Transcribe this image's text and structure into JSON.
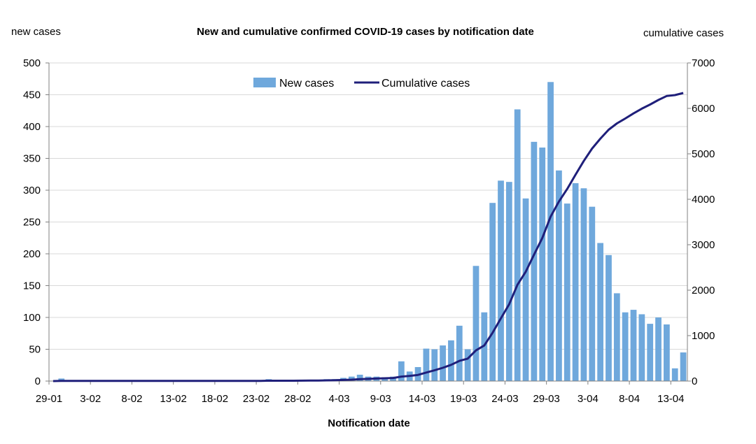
{
  "chart_data": {
    "type": "bar",
    "title": "New and cumulative confirmed COVID-19 cases by notification date",
    "ylabel_left": "new cases",
    "ylabel_right": "cumulative cases",
    "xlabel": "Notification date",
    "ylim_left": [
      0,
      500
    ],
    "ylim_right": [
      0,
      7000
    ],
    "yticks_left": [
      "0",
      "50",
      "100",
      "150",
      "200",
      "250",
      "300",
      "350",
      "400",
      "450",
      "500"
    ],
    "yticks_right": [
      "0",
      "1000",
      "2000",
      "3000",
      "4000",
      "5000",
      "6000",
      "7000"
    ],
    "grid": true,
    "legend_position": "top-center",
    "xtick_labels": [
      "29-01",
      "3-02",
      "8-02",
      "13-02",
      "18-02",
      "23-02",
      "28-02",
      "4-03",
      "9-03",
      "14-03",
      "19-03",
      "24-03",
      "29-03",
      "3-04",
      "8-04",
      "13-04"
    ],
    "categories": [
      "29-01",
      "30-01",
      "31-01",
      "1-02",
      "2-02",
      "3-02",
      "4-02",
      "5-02",
      "6-02",
      "7-02",
      "8-02",
      "9-02",
      "10-02",
      "11-02",
      "12-02",
      "13-02",
      "14-02",
      "15-02",
      "16-02",
      "17-02",
      "18-02",
      "19-02",
      "20-02",
      "21-02",
      "22-02",
      "23-02",
      "24-02",
      "25-02",
      "26-02",
      "27-02",
      "28-02",
      "29-02",
      "1-03",
      "2-03",
      "3-03",
      "4-03",
      "5-03",
      "6-03",
      "7-03",
      "8-03",
      "9-03",
      "10-03",
      "11-03",
      "12-03",
      "13-03",
      "14-03",
      "15-03",
      "16-03",
      "17-03",
      "18-03",
      "19-03",
      "20-03",
      "21-03",
      "22-03",
      "23-03",
      "24-03",
      "25-03",
      "26-03",
      "27-03",
      "28-03",
      "29-03",
      "30-03",
      "31-03",
      "1-04",
      "2-04",
      "3-04",
      "4-04",
      "5-04",
      "6-04",
      "7-04",
      "8-04",
      "9-04",
      "10-04",
      "11-04",
      "12-04",
      "13-04",
      "14-04"
    ],
    "series": [
      {
        "name": "New cases",
        "type": "bar",
        "axis": "left",
        "color": "#6fa8dc",
        "values": [
          0,
          4,
          0,
          0,
          0,
          0,
          0,
          0,
          0,
          0,
          0,
          0,
          0,
          0,
          0,
          0,
          0,
          0,
          0,
          0,
          0,
          0,
          0,
          0,
          0,
          0,
          3,
          0,
          0,
          0,
          2,
          2,
          2,
          3,
          3,
          5,
          7,
          10,
          7,
          7,
          6,
          7,
          31,
          15,
          22,
          51,
          50,
          56,
          64,
          87,
          50,
          181,
          108,
          280,
          315,
          313,
          427,
          287,
          376,
          367,
          470,
          331,
          279,
          311,
          303,
          274,
          217,
          198,
          138,
          108,
          112,
          105,
          90,
          100,
          89,
          20,
          45
        ]
      },
      {
        "name": "Cumulative cases",
        "type": "line",
        "axis": "right",
        "color": "#1f1f7a",
        "values": [
          0,
          4,
          4,
          4,
          4,
          4,
          4,
          4,
          4,
          4,
          4,
          4,
          4,
          4,
          4,
          4,
          4,
          4,
          4,
          4,
          4,
          4,
          4,
          4,
          4,
          4,
          7,
          7,
          7,
          7,
          9,
          11,
          13,
          16,
          19,
          24,
          31,
          41,
          48,
          55,
          61,
          68,
          99,
          114,
          136,
          187,
          237,
          293,
          357,
          444,
          494,
          675,
          783,
          1063,
          1378,
          1691,
          2118,
          2405,
          2781,
          3148,
          3618,
          3949,
          4228,
          4539,
          4842,
          5116,
          5333,
          5531,
          5669,
          5777,
          5889,
          5994,
          6084,
          6184,
          6273,
          6293,
          6338
        ]
      }
    ]
  }
}
